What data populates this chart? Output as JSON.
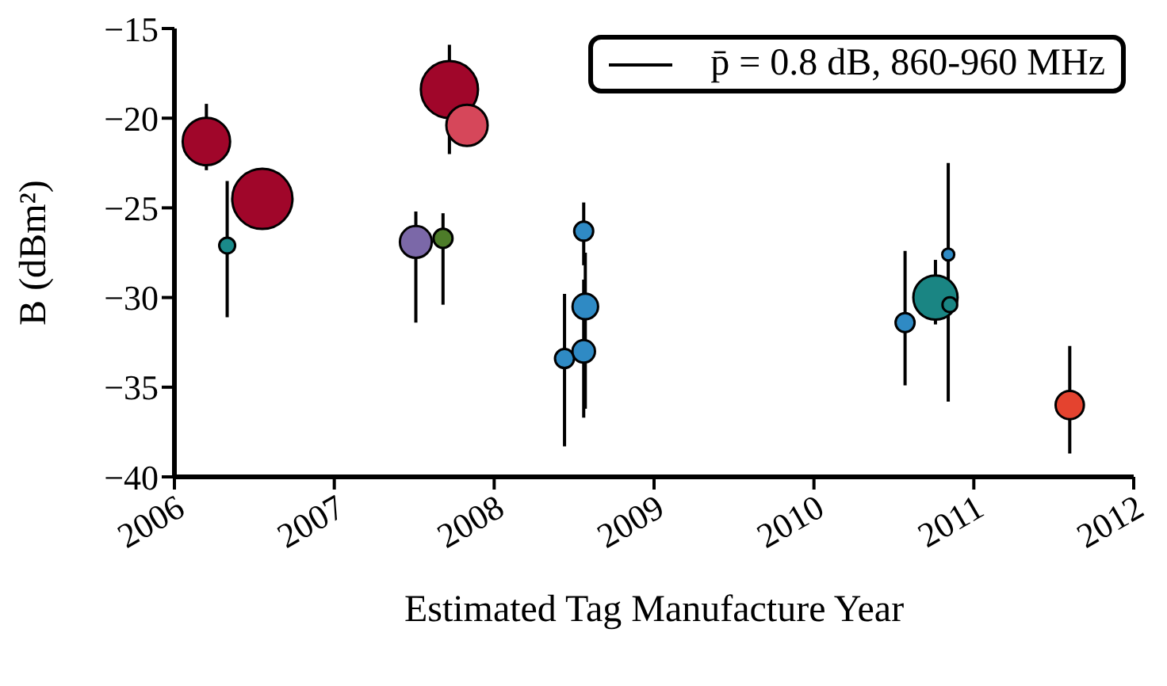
{
  "chart_data": {
    "type": "bubble",
    "xlabel": "Estimated Tag Manufacture Year",
    "ylabel": "B (dBm²)",
    "xlim": [
      2006,
      2012
    ],
    "xticks": [
      2006,
      2007,
      2008,
      2009,
      2010,
      2011,
      2012
    ],
    "ylim": [
      -40,
      -15
    ],
    "yticks": [
      -40,
      -35,
      -30,
      -25,
      -20,
      -15
    ],
    "legend": "top right",
    "marker": "circle",
    "series": [
      {
        "name": "p̄ = 0.8 dB, 860-960 MHz",
        "color": "#000000",
        "x": [
          2006.2,
          2006.33,
          2006.55,
          2007.72,
          2007.83,
          2007.51,
          2007.68,
          2008.44,
          2008.56,
          2008.57,
          2008.56,
          2010.57,
          2010.76,
          2010.84,
          2010.85,
          2011.6
        ],
        "values": [
          -21.3,
          -27.1,
          -24.5,
          -18.4,
          -20.4,
          -26.9,
          -26.7,
          -33.4,
          -26.3,
          -30.5,
          -33.0,
          -31.4,
          -30.0,
          -27.6,
          -30.4,
          -36.0
        ],
        "sizes": [
          0.62,
          0.07,
          1,
          0.9,
          0.47,
          0.28,
          0.1,
          0.1,
          0.1,
          0.18,
          0.14,
          0.1,
          0.54,
          0.04,
          0.06,
          0.22
        ],
        "colors": [
          "#a0062a",
          "#1a8a8a",
          "#a0062a",
          "#a0062a",
          "#d6475a",
          "#7b68a8",
          "#4d7c29",
          "#2f8ac4",
          "#2f8ac4",
          "#2f8ac4",
          "#2f8ac4",
          "#2f8ac4",
          "#1a8583",
          "#2f8ac4",
          "#1a8583",
          "#e4432f"
        ],
        "errors": [
          [
            -22.9,
            -19.2
          ],
          [
            -31.1,
            -23.5
          ],
          null,
          [
            -22.0,
            -15.9
          ],
          null,
          [
            -31.4,
            -25.2
          ],
          [
            -30.4,
            -25.3
          ],
          [
            -38.3,
            -29.8
          ],
          [
            -28.2,
            -24.7
          ],
          [
            -36.2,
            -27.5
          ],
          [
            -36.7,
            -29.0
          ],
          [
            -34.9,
            -27.4
          ],
          [
            -31.5,
            -27.9
          ],
          [
            -35.8,
            -22.5
          ],
          null,
          [
            -38.7,
            -32.7
          ]
        ]
      }
    ]
  }
}
